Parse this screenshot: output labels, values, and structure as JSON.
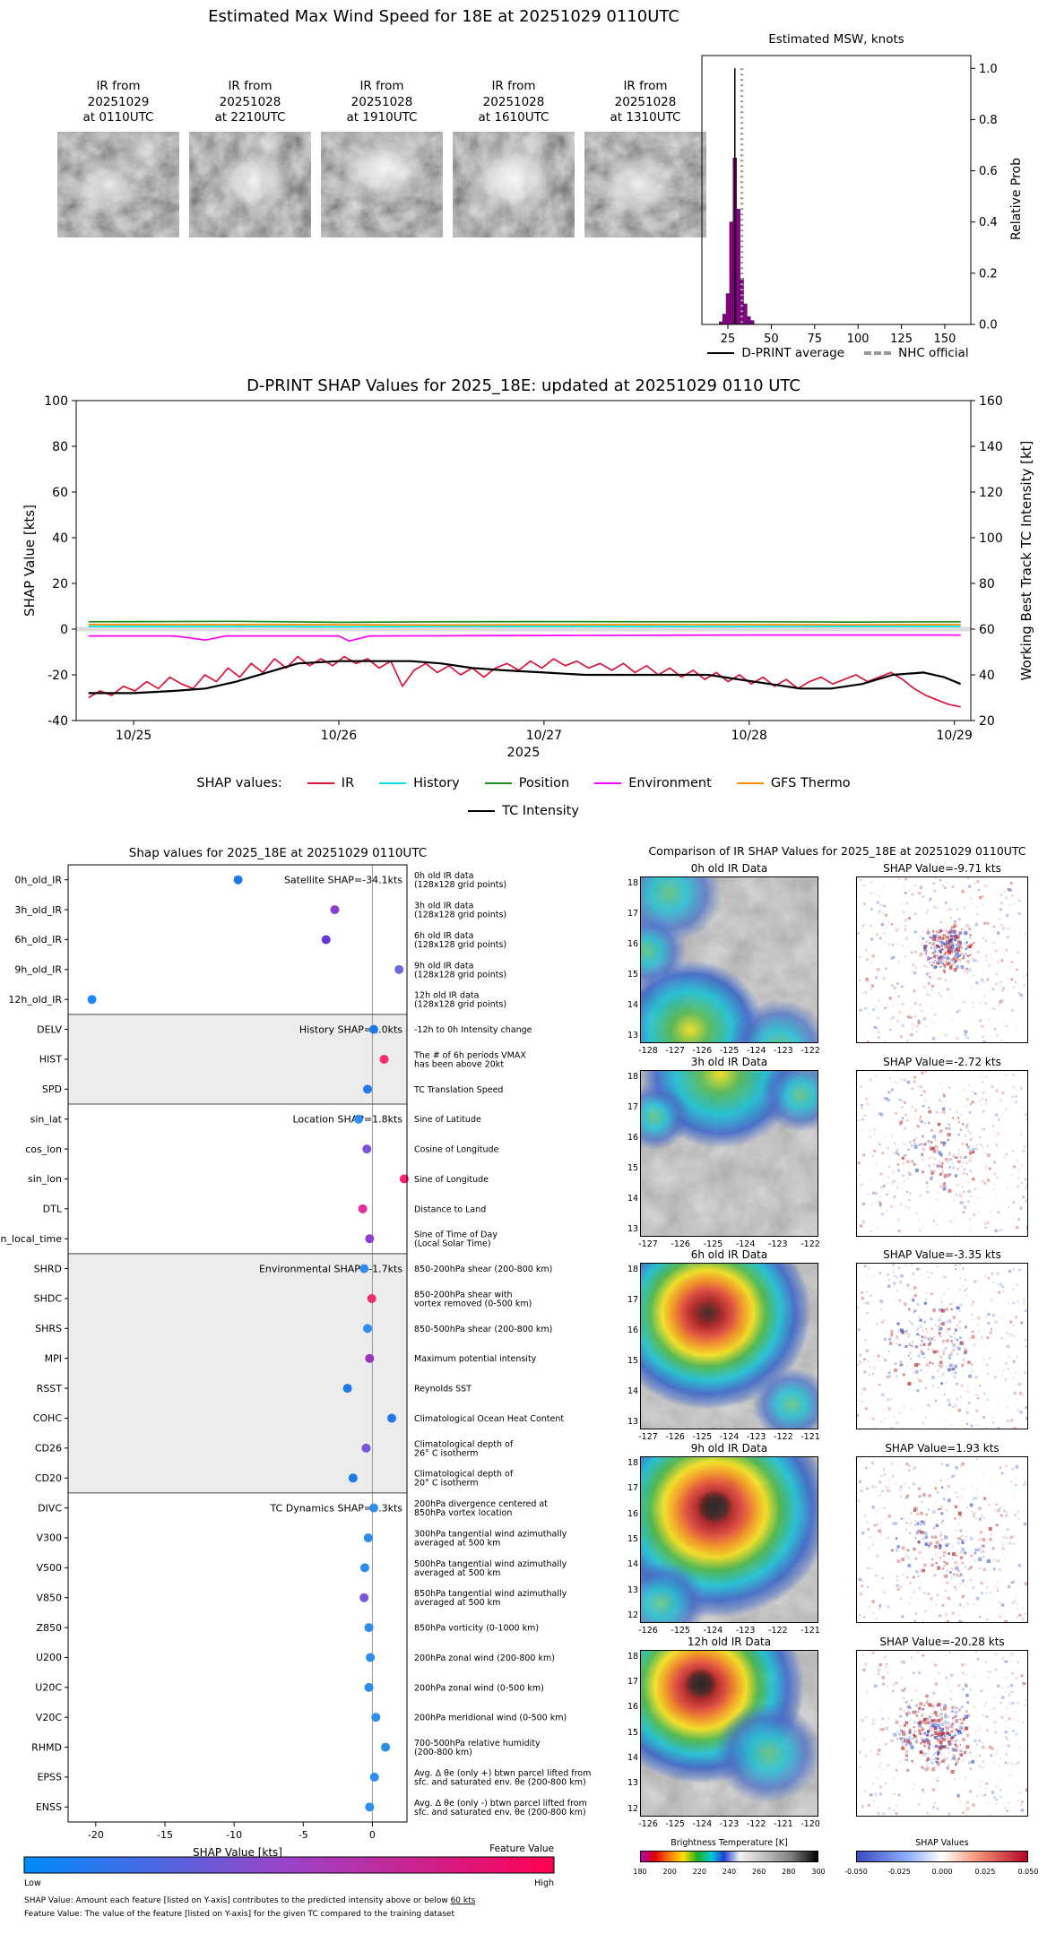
{
  "header": {
    "title": "Estimated Max Wind Speed for 18E at 20251029 0110UTC"
  },
  "thumbnails": {
    "items": [
      {
        "line1": "IR from",
        "line2": "20251029",
        "line3": "at 0110UTC"
      },
      {
        "line1": "IR from",
        "line2": "20251028",
        "line3": "at 2210UTC"
      },
      {
        "line1": "IR from",
        "line2": "20251028",
        "line3": "at 1910UTC"
      },
      {
        "line1": "IR from",
        "line2": "20251028",
        "line3": "at 1610UTC"
      },
      {
        "line1": "IR from",
        "line2": "20251028",
        "line3": "at 1310UTC"
      }
    ]
  },
  "chart_data": [
    {
      "id": "msw_histogram",
      "type": "bar",
      "title": "Estimated MSW, knots",
      "ylabel": "Relative Prob",
      "xlim": [
        10,
        165
      ],
      "ylim": [
        0,
        1.05
      ],
      "xticks": [
        25,
        50,
        75,
        100,
        125,
        150
      ],
      "yticks": [
        0.0,
        0.2,
        0.4,
        0.6,
        0.8,
        1.0
      ],
      "bar_color": "#8B008B",
      "bins": [
        {
          "x": 21,
          "h": 0.01
        },
        {
          "x": 23,
          "h": 0.04
        },
        {
          "x": 25,
          "h": 0.12
        },
        {
          "x": 27,
          "h": 0.4
        },
        {
          "x": 29,
          "h": 0.65
        },
        {
          "x": 31,
          "h": 0.45
        },
        {
          "x": 33,
          "h": 0.18
        },
        {
          "x": 35,
          "h": 0.08
        },
        {
          "x": 37,
          "h": 0.03
        },
        {
          "x": 39,
          "h": 0.015
        }
      ],
      "dprint_average": 29,
      "nhc_official": 33,
      "legend": [
        {
          "label": "D-PRINT average",
          "style": "solid",
          "color": "#000000"
        },
        {
          "label": "NHC official",
          "style": "dashed",
          "color": "#999999"
        }
      ]
    },
    {
      "id": "shap_timeseries",
      "type": "line",
      "title": "D-PRINT SHAP Values for 2025_18E: updated at 20251029 0110 UTC",
      "ylabel_left": "SHAP Value [kts]",
      "ylabel_right": "Working Best Track TC Intensity [kt]",
      "xlabel": "2025",
      "xlim": [
        24.72,
        29.08
      ],
      "ylim_left": [
        -40,
        100
      ],
      "ylim_right": [
        20,
        160
      ],
      "yticks_left": [
        -40,
        -20,
        0,
        20,
        40,
        60,
        80,
        100
      ],
      "yticks_right": [
        20,
        40,
        60,
        80,
        100,
        120,
        140,
        160
      ],
      "xtick_values": [
        25,
        26,
        27,
        28,
        29
      ],
      "xtick_labels": [
        "10/25",
        "10/26",
        "10/27",
        "10/28",
        "10/29"
      ],
      "legend_title": "SHAP values:",
      "series": [
        {
          "name": "IR",
          "color": "#DC143C",
          "x_start": 24.78,
          "x_step": 0.05667,
          "y": [
            -30,
            -27,
            -29,
            -25,
            -27,
            -23,
            -26,
            -21,
            -24,
            -26,
            -20,
            -23,
            -17,
            -21,
            -15,
            -19,
            -13,
            -17,
            -12,
            -16,
            -13,
            -16,
            -12,
            -15,
            -13,
            -17,
            -14,
            -25,
            -18,
            -15,
            -19,
            -16,
            -20,
            -17,
            -21,
            -17,
            -15,
            -18,
            -14,
            -17,
            -13,
            -16,
            -14,
            -17,
            -15,
            -18,
            -15,
            -19,
            -16,
            -20,
            -17,
            -21,
            -18,
            -22,
            -19,
            -23,
            -20,
            -24,
            -21,
            -25,
            -22,
            -26,
            -23,
            -21,
            -24,
            -22,
            -20,
            -23,
            -21,
            -19,
            -22,
            -26,
            -29,
            -31,
            -33,
            -34
          ]
        },
        {
          "name": "History",
          "color": "#00E5E5",
          "x": [
            24.78,
            25.5,
            26.0,
            26.5,
            27.0,
            27.5,
            28.0,
            28.5,
            29.03
          ],
          "y": [
            1.2,
            1.2,
            1.0,
            1.2,
            1.2,
            1.2,
            1.1,
            1.2,
            1.2
          ]
        },
        {
          "name": "Position",
          "color": "#228B22",
          "x": [
            24.78,
            25.5,
            26.0,
            26.5,
            27.0,
            27.5,
            28.0,
            28.5,
            29.03
          ],
          "y": [
            3.2,
            3.4,
            3.0,
            3.2,
            3.3,
            3.2,
            3.2,
            3.1,
            3.2
          ]
        },
        {
          "name": "Environment",
          "color": "#FF00FF",
          "x": [
            24.78,
            25.2,
            25.35,
            25.45,
            26.0,
            26.05,
            26.15,
            27.0,
            28.0,
            29.03
          ],
          "y": [
            -3,
            -3,
            -4.8,
            -3,
            -3,
            -5.2,
            -3,
            -2.8,
            -2.6,
            -2.6
          ]
        },
        {
          "name": "GFS Thermo",
          "color": "#FF8C00",
          "x": [
            24.78,
            25.5,
            26.5,
            27.5,
            28.5,
            29.03
          ],
          "y": [
            2.0,
            2.0,
            1.8,
            2.0,
            1.9,
            2.0
          ]
        },
        {
          "name": "TC Intensity",
          "color": "#000000",
          "axis": "right",
          "width": 2.2,
          "x": [
            24.78,
            25.0,
            25.2,
            25.35,
            25.5,
            25.65,
            25.8,
            26.0,
            26.2,
            26.35,
            26.5,
            26.65,
            26.8,
            27.0,
            27.2,
            27.4,
            27.6,
            27.8,
            27.95,
            28.1,
            28.25,
            28.4,
            28.55,
            28.7,
            28.85,
            28.95,
            29.03
          ],
          "y": [
            32,
            32,
            33,
            34,
            37,
            41,
            45,
            46,
            46,
            46,
            45,
            43,
            42,
            41,
            40,
            40,
            40,
            40,
            38,
            36,
            34,
            34,
            36,
            40,
            41,
            39,
            36
          ]
        }
      ]
    },
    {
      "id": "shap_dotplot",
      "type": "scatter",
      "title": "Shap values for 2025_18E at 20251029 0110UTC",
      "xlabel": "SHAP Value [kts]",
      "xlim": [
        -22,
        2.5
      ],
      "xticks": [
        -20,
        -15,
        -10,
        -5,
        0
      ],
      "colorbar": {
        "title": "Feature Value",
        "low": "Low",
        "high": "High"
      },
      "footnote1": "SHAP Value: Amount each feature [listed on Y-axis] contributes to the predicted intensity above or below ",
      "footnote1_link": "60 kts",
      "footnote2": "Feature Value: The value of the feature [listed on Y-axis] for the given TC compared to the training dataset",
      "groups": [
        {
          "label": "Satellite SHAP=-34.1kts",
          "shaded": false,
          "rows": [
            {
              "feature": "0h_old_IR",
              "value": -9.71,
              "color": "#2079e8",
              "desc": [
                "0h old IR data",
                "(128x128 grid points)"
              ]
            },
            {
              "feature": "3h_old_IR",
              "value": -2.72,
              "color": "#8a3fd1",
              "desc": [
                "3h old IR data",
                "(128x128 grid points)"
              ]
            },
            {
              "feature": "6h_old_IR",
              "value": -3.35,
              "color": "#6a35d8",
              "desc": [
                "6h old IR data",
                "(128x128 grid points)"
              ]
            },
            {
              "feature": "9h_old_IR",
              "value": 1.93,
              "color": "#6b6be0",
              "desc": [
                "9h old IR data",
                "(128x128 grid points)"
              ]
            },
            {
              "feature": "12h_old_IR",
              "value": -20.28,
              "color": "#1f88f7",
              "desc": [
                "12h old IR data",
                "(128x128 grid points)"
              ]
            }
          ]
        },
        {
          "label": "History SHAP=1.0kts",
          "shaded": true,
          "rows": [
            {
              "feature": "DELV",
              "value": 0.1,
              "color": "#2079e8",
              "desc": [
                "-12h to 0h Intensity change"
              ]
            },
            {
              "feature": "HIST",
              "value": 0.85,
              "color": "#ff2d6b",
              "desc": [
                "The # of 6h periods VMAX",
                "has been above 20kt"
              ]
            },
            {
              "feature": "SPD",
              "value": -0.35,
              "color": "#2079e8",
              "desc": [
                "TC Translation Speed"
              ]
            }
          ]
        },
        {
          "label": "Location SHAP=1.8kts",
          "shaded": false,
          "rows": [
            {
              "feature": "sin_lat",
              "value": -1.0,
              "color": "#2e8ef0",
              "desc": [
                "Sine of Latitude"
              ]
            },
            {
              "feature": "cos_lon",
              "value": -0.4,
              "color": "#7a55d8",
              "desc": [
                "Cosine of Longitude"
              ]
            },
            {
              "feature": "sin_lon",
              "value": 2.3,
              "color": "#ff1f78",
              "desc": [
                "Sine of Longitude"
              ]
            },
            {
              "feature": "DTL",
              "value": -0.7,
              "color": "#e0309a",
              "desc": [
                "Distance to Land"
              ]
            },
            {
              "feature": "sin_local_time",
              "value": -0.2,
              "color": "#8a3fd1",
              "desc": [
                "Sine of Time of Day",
                "(Local Solar Time)"
              ]
            }
          ]
        },
        {
          "label": "Environmental SHAP=-1.7kts",
          "shaded": true,
          "rows": [
            {
              "feature": "SHRD",
              "value": -0.6,
              "color": "#2e8ef0",
              "desc": [
                "850-200hPa shear (200-800 km)"
              ]
            },
            {
              "feature": "SHDC",
              "value": -0.05,
              "color": "#f02d6b",
              "desc": [
                "850-200hPa shear with",
                "vortex removed (0-500 km)"
              ]
            },
            {
              "feature": "SHRS",
              "value": -0.35,
              "color": "#2e8ef0",
              "desc": [
                "850-500hPa shear (200-800 km)"
              ]
            },
            {
              "feature": "MPI",
              "value": -0.2,
              "color": "#9a35c0",
              "desc": [
                "Maximum potential intensity"
              ]
            },
            {
              "feature": "RSST",
              "value": -1.8,
              "color": "#2079e8",
              "desc": [
                "Reynolds SST"
              ]
            },
            {
              "feature": "COHC",
              "value": 1.4,
              "color": "#2079e8",
              "desc": [
                "Climatological Ocean Heat Content"
              ]
            },
            {
              "feature": "CD26",
              "value": -0.45,
              "color": "#7a55d8",
              "desc": [
                "Climatological depth of",
                "26° C isotherm"
              ]
            },
            {
              "feature": "CD20",
              "value": -1.4,
              "color": "#2079e8",
              "desc": [
                "Climatological depth of",
                "20° C isotherm"
              ]
            }
          ]
        },
        {
          "label": "TC Dynamics SHAP=0.3kts",
          "shaded": false,
          "rows": [
            {
              "feature": "DIVC",
              "value": 0.1,
              "color": "#2e8ef0",
              "desc": [
                "200hPa divergence centered at",
                "850hPa vortex location"
              ]
            },
            {
              "feature": "V300",
              "value": -0.3,
              "color": "#2e8ef0",
              "desc": [
                "300hPa tangential wind azimuthally",
                "averaged at 500 km"
              ]
            },
            {
              "feature": "V500",
              "value": -0.55,
              "color": "#2e8ef0",
              "desc": [
                "500hPa tangential wind azimuthally",
                "averaged at 500 km"
              ]
            },
            {
              "feature": "V850",
              "value": -0.6,
              "color": "#7a55d8",
              "desc": [
                "850hPa tangential wind azimuthally",
                "averaged at 500 km"
              ]
            },
            {
              "feature": "Z850",
              "value": -0.25,
              "color": "#2e8ef0",
              "desc": [
                "850hPa vorticity (0-1000 km)"
              ]
            },
            {
              "feature": "U200",
              "value": -0.15,
              "color": "#2e8ef0",
              "desc": [
                "200hPa zonal wind (200-800 km)"
              ]
            },
            {
              "feature": "U20C",
              "value": -0.25,
              "color": "#2e8ef0",
              "desc": [
                "200hPa zonal wind (0-500 km)"
              ]
            },
            {
              "feature": "V20C",
              "value": 0.25,
              "color": "#2e8ef0",
              "desc": [
                "200hPa meridional wind (0-500 km)"
              ]
            },
            {
              "feature": "RHMD",
              "value": 0.95,
              "color": "#2e8ef0",
              "desc": [
                "700-500hPa relative humidity",
                "(200-800 km)"
              ]
            },
            {
              "feature": "EPSS",
              "value": 0.15,
              "color": "#2e8ef0",
              "desc": [
                "Avg. Δ θe (only +) btwn parcel lifted from",
                "sfc. and saturated env. θe (200-800 km)"
              ]
            },
            {
              "feature": "ENSS",
              "value": -0.2,
              "color": "#2e8ef0",
              "desc": [
                "Avg. Δ θe (only -) btwn parcel lifted from",
                "sfc. and saturated env. θe (200-800 km)"
              ]
            }
          ]
        }
      ]
    },
    {
      "id": "ir_comparison",
      "type": "heatmap",
      "title": "Comparison of IR SHAP Values for 2025_18E at 20251029 0110UTC",
      "rows": [
        {
          "ir_title": "0h old IR Data",
          "shap_title": "SHAP Value=-9.71 kts",
          "yticks": [
            18,
            17,
            16,
            15,
            14,
            13
          ],
          "xticks": [
            -128,
            -127,
            -126,
            -125,
            -124,
            -123,
            -122
          ]
        },
        {
          "ir_title": "3h old IR Data",
          "shap_title": "SHAP Value=-2.72 kts",
          "yticks": [
            18,
            17,
            16,
            15,
            14,
            13
          ],
          "xticks": [
            -127,
            -126,
            -125,
            -124,
            -123,
            -122
          ]
        },
        {
          "ir_title": "6h old IR Data",
          "shap_title": "SHAP Value=-3.35 kts",
          "yticks": [
            18,
            17,
            16,
            15,
            14,
            13
          ],
          "xticks": [
            -127,
            -126,
            -125,
            -124,
            -123,
            -122,
            -121
          ]
        },
        {
          "ir_title": "9h old IR Data",
          "shap_title": "SHAP Value=1.93 kts",
          "yticks": [
            18,
            17,
            16,
            15,
            14,
            13,
            12
          ],
          "xticks": [
            -126,
            -125,
            -124,
            -123,
            -122,
            -121
          ]
        },
        {
          "ir_title": "12h old IR Data",
          "shap_title": "SHAP Value=-20.28 kts",
          "yticks": [
            18,
            17,
            16,
            15,
            14,
            13,
            12
          ],
          "xticks": [
            -126,
            -125,
            -124,
            -123,
            -122,
            -121,
            -120
          ]
        }
      ],
      "colorbar_bt": {
        "title": "Brightness Temperature [K]",
        "ticks": [
          180,
          200,
          220,
          240,
          260,
          280,
          300
        ]
      },
      "colorbar_shap": {
        "title": "SHAP Values",
        "ticks": [
          "-0.050",
          "-0.025",
          "0.000",
          "0.025",
          "0.050"
        ]
      }
    }
  ]
}
